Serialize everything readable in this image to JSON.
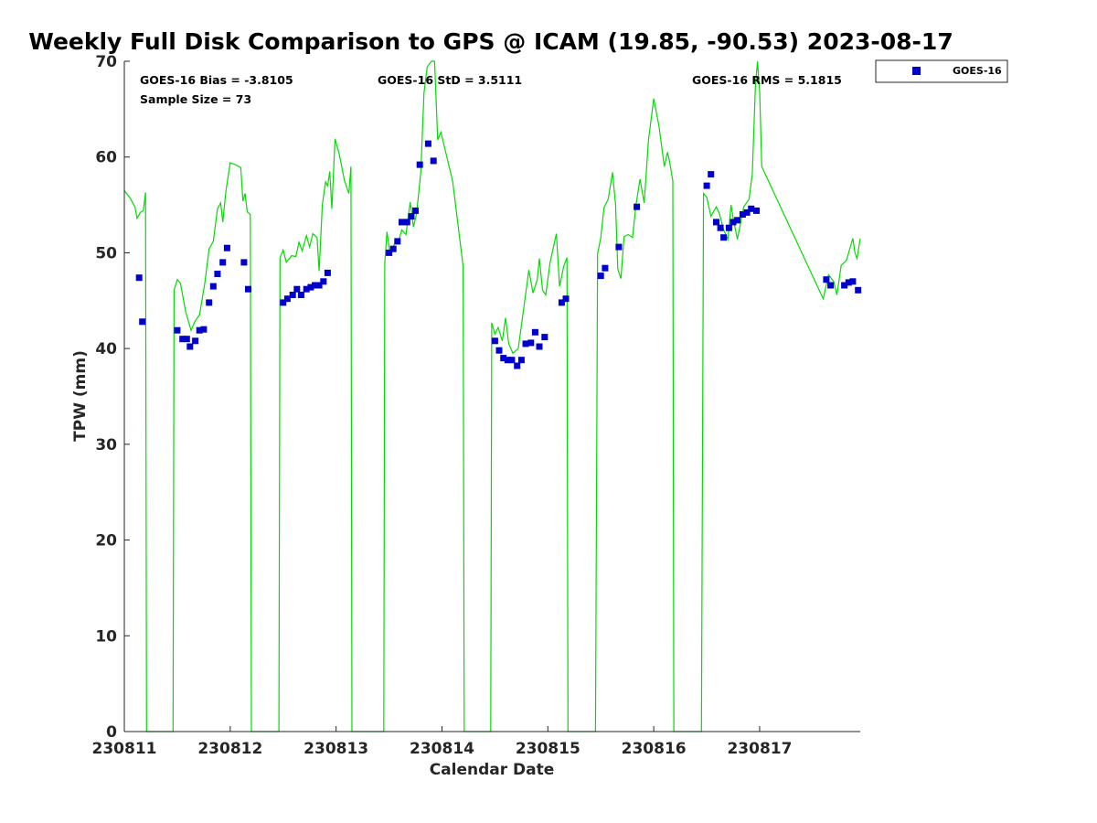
{
  "chart_data": {
    "type": "scatter",
    "title": "Weekly Full Disk Comparison to GPS @ ICAM (19.85, -90.53) 2023-08-17",
    "xlabel": "Calendar Date",
    "ylabel": "TPW (mm)",
    "xlim": [
      0,
      6.95
    ],
    "ylim": [
      0,
      70
    ],
    "x_ticks": [
      {
        "value": 0,
        "label": "230811"
      },
      {
        "value": 1,
        "label": "230812"
      },
      {
        "value": 2,
        "label": "230813"
      },
      {
        "value": 3,
        "label": "230814"
      },
      {
        "value": 4,
        "label": "230815"
      },
      {
        "value": 5,
        "label": "230816"
      },
      {
        "value": 6,
        "label": "230817"
      }
    ],
    "y_ticks": [
      0,
      10,
      20,
      30,
      40,
      50,
      60,
      70
    ],
    "grid": false,
    "legend": {
      "placement": "outside top-right",
      "entries": [
        "GOES-16"
      ]
    },
    "stats": {
      "bias": "GOES-16 Bias = -3.8105",
      "std": "GOES-16 StD = 3.5111",
      "rms": "GOES-16 RMS = 5.1815",
      "sample": "Sample Size = 73"
    },
    "colors": {
      "series": "#0000cc",
      "line": "#00dd00",
      "text": "#262626"
    },
    "series": [
      {
        "name": "GOES-16",
        "marker": "square",
        "points": [
          [
            0.14,
            47.4
          ],
          [
            0.17,
            42.8
          ],
          [
            0.5,
            41.9
          ],
          [
            0.55,
            41.0
          ],
          [
            0.59,
            41.0
          ],
          [
            0.62,
            40.2
          ],
          [
            0.67,
            40.8
          ],
          [
            0.71,
            41.9
          ],
          [
            0.75,
            42.0
          ],
          [
            0.8,
            44.8
          ],
          [
            0.84,
            46.5
          ],
          [
            0.88,
            47.8
          ],
          [
            0.93,
            49.0
          ],
          [
            0.97,
            50.5
          ],
          [
            1.13,
            49.0
          ],
          [
            1.17,
            46.2
          ],
          [
            1.5,
            44.8
          ],
          [
            1.54,
            45.2
          ],
          [
            1.59,
            45.6
          ],
          [
            1.63,
            46.2
          ],
          [
            1.67,
            45.6
          ],
          [
            1.72,
            46.2
          ],
          [
            1.76,
            46.4
          ],
          [
            1.8,
            46.6
          ],
          [
            1.84,
            46.6
          ],
          [
            1.88,
            47.0
          ],
          [
            1.92,
            47.9
          ],
          [
            2.5,
            50.0
          ],
          [
            2.54,
            50.4
          ],
          [
            2.58,
            51.2
          ],
          [
            2.62,
            53.2
          ],
          [
            2.67,
            53.2
          ],
          [
            2.71,
            53.8
          ],
          [
            2.75,
            54.4
          ],
          [
            2.79,
            59.2
          ],
          [
            2.87,
            61.4
          ],
          [
            2.92,
            59.6
          ],
          [
            3.5,
            40.8
          ],
          [
            3.54,
            39.8
          ],
          [
            3.58,
            39.0
          ],
          [
            3.62,
            38.8
          ],
          [
            3.66,
            38.8
          ],
          [
            3.71,
            38.2
          ],
          [
            3.75,
            38.8
          ],
          [
            3.79,
            40.5
          ],
          [
            3.84,
            40.6
          ],
          [
            3.88,
            41.7
          ],
          [
            3.92,
            40.2
          ],
          [
            3.97,
            41.2
          ],
          [
            4.13,
            44.8
          ],
          [
            4.17,
            45.2
          ],
          [
            4.5,
            47.6
          ],
          [
            4.54,
            48.4
          ],
          [
            4.67,
            50.6
          ],
          [
            4.84,
            54.8
          ],
          [
            5.5,
            57.0
          ],
          [
            5.54,
            58.2
          ],
          [
            5.59,
            53.2
          ],
          [
            5.63,
            52.6
          ],
          [
            5.66,
            51.6
          ],
          [
            5.71,
            52.6
          ],
          [
            5.75,
            53.2
          ],
          [
            5.79,
            53.4
          ],
          [
            5.84,
            54.0
          ],
          [
            5.88,
            54.2
          ],
          [
            5.92,
            54.6
          ],
          [
            5.97,
            54.4
          ],
          [
            6.63,
            47.2
          ],
          [
            6.67,
            46.6
          ],
          [
            6.8,
            46.6
          ],
          [
            6.84,
            46.9
          ],
          [
            6.88,
            47.0
          ],
          [
            6.93,
            46.1
          ]
        ]
      },
      {
        "name": "",
        "type": "line",
        "points": [
          [
            0,
            56.5
          ],
          [
            0.05,
            55.8
          ],
          [
            0.1,
            54.8
          ],
          [
            0.12,
            53.6
          ],
          [
            0.15,
            54.2
          ],
          [
            0.18,
            54.4
          ],
          [
            0.2,
            56.3
          ],
          [
            0.21,
            0
          ],
          [
            0.46,
            0
          ],
          [
            0.47,
            46.1
          ],
          [
            0.5,
            47.2
          ],
          [
            0.53,
            46.8
          ],
          [
            0.58,
            43.8
          ],
          [
            0.63,
            41.9
          ],
          [
            0.67,
            42.9
          ],
          [
            0.71,
            43.5
          ],
          [
            0.76,
            46.8
          ],
          [
            0.8,
            50.4
          ],
          [
            0.84,
            51.2
          ],
          [
            0.88,
            54.6
          ],
          [
            0.91,
            55.2
          ],
          [
            0.93,
            53.2
          ],
          [
            0.96,
            56.5
          ],
          [
            1.0,
            59.4
          ],
          [
            1.05,
            59.2
          ],
          [
            1.1,
            58.9
          ],
          [
            1.12,
            55.4
          ],
          [
            1.14,
            56.2
          ],
          [
            1.16,
            54.3
          ],
          [
            1.19,
            54.0
          ],
          [
            1.2,
            0
          ],
          [
            1.46,
            0
          ],
          [
            1.47,
            49.5
          ],
          [
            1.5,
            50.3
          ],
          [
            1.53,
            49.0
          ],
          [
            1.58,
            49.7
          ],
          [
            1.62,
            49.6
          ],
          [
            1.65,
            51.1
          ],
          [
            1.68,
            50.2
          ],
          [
            1.72,
            51.8
          ],
          [
            1.75,
            50.6
          ],
          [
            1.78,
            52.0
          ],
          [
            1.82,
            51.6
          ],
          [
            1.84,
            48.1
          ],
          [
            1.87,
            55.0
          ],
          [
            1.9,
            57.4
          ],
          [
            1.92,
            57.0
          ],
          [
            1.94,
            58.5
          ],
          [
            1.96,
            54.6
          ],
          [
            1.99,
            61.9
          ],
          [
            2.03,
            60.3
          ],
          [
            2.08,
            57.5
          ],
          [
            2.12,
            56.2
          ],
          [
            2.14,
            59.0
          ],
          [
            2.15,
            0
          ],
          [
            2.45,
            0
          ],
          [
            2.46,
            48.9
          ],
          [
            2.48,
            52.2
          ],
          [
            2.51,
            49.9
          ],
          [
            2.55,
            50.9
          ],
          [
            2.59,
            51.2
          ],
          [
            2.62,
            52.4
          ],
          [
            2.66,
            51.9
          ],
          [
            2.7,
            55.3
          ],
          [
            2.73,
            52.7
          ],
          [
            2.76,
            54.1
          ],
          [
            2.8,
            58.4
          ],
          [
            2.83,
            66.7
          ],
          [
            2.86,
            69.4
          ],
          [
            2.9,
            70.5
          ],
          [
            2.93,
            70.0
          ],
          [
            2.96,
            61.8
          ],
          [
            2.99,
            62.6
          ],
          [
            3.1,
            57.5
          ],
          [
            3.2,
            48.6
          ],
          [
            3.21,
            0
          ],
          [
            3.46,
            0
          ],
          [
            3.47,
            42.7
          ],
          [
            3.5,
            41.5
          ],
          [
            3.53,
            42.2
          ],
          [
            3.57,
            40.8
          ],
          [
            3.6,
            43.2
          ],
          [
            3.63,
            40.5
          ],
          [
            3.67,
            39.5
          ],
          [
            3.72,
            40.0
          ],
          [
            3.76,
            43.2
          ],
          [
            3.82,
            48.2
          ],
          [
            3.86,
            45.8
          ],
          [
            3.9,
            47.2
          ],
          [
            3.92,
            49.4
          ],
          [
            3.95,
            46.1
          ],
          [
            3.98,
            45.6
          ],
          [
            4.02,
            48.9
          ],
          [
            4.08,
            52.0
          ],
          [
            4.11,
            46.5
          ],
          [
            4.15,
            48.6
          ],
          [
            4.18,
            49.5
          ],
          [
            4.19,
            0
          ],
          [
            4.45,
            0
          ],
          [
            4.47,
            49.9
          ],
          [
            4.5,
            51.6
          ],
          [
            4.53,
            54.7
          ],
          [
            4.57,
            55.6
          ],
          [
            4.61,
            58.4
          ],
          [
            4.64,
            55.0
          ],
          [
            4.66,
            48.3
          ],
          [
            4.69,
            47.3
          ],
          [
            4.72,
            51.7
          ],
          [
            4.76,
            51.9
          ],
          [
            4.8,
            51.6
          ],
          [
            4.83,
            54.8
          ],
          [
            4.87,
            57.7
          ],
          [
            4.91,
            55.2
          ],
          [
            4.95,
            61.7
          ],
          [
            5.0,
            66.1
          ],
          [
            5.05,
            63.2
          ],
          [
            5.1,
            59.0
          ],
          [
            5.13,
            60.5
          ],
          [
            5.15,
            59.5
          ],
          [
            5.18,
            57.5
          ],
          [
            5.19,
            0
          ],
          [
            5.45,
            0
          ],
          [
            5.47,
            56.2
          ],
          [
            5.5,
            55.8
          ],
          [
            5.54,
            53.8
          ],
          [
            5.59,
            54.8
          ],
          [
            5.62,
            54.1
          ],
          [
            5.66,
            52.4
          ],
          [
            5.7,
            51.4
          ],
          [
            5.73,
            55.0
          ],
          [
            5.75,
            53.6
          ],
          [
            5.79,
            51.4
          ],
          [
            5.85,
            54.8
          ],
          [
            5.9,
            55.6
          ],
          [
            5.93,
            58.2
          ],
          [
            5.96,
            67.3
          ],
          [
            5.98,
            70.5
          ],
          [
            6.0,
            66.8
          ],
          [
            6.02,
            59.0
          ],
          [
            6.6,
            45.2
          ],
          [
            6.65,
            47.7
          ],
          [
            6.7,
            47.0
          ],
          [
            6.73,
            45.6
          ],
          [
            6.77,
            48.7
          ],
          [
            6.82,
            49.2
          ],
          [
            6.88,
            51.5
          ],
          [
            6.9,
            50.0
          ],
          [
            6.92,
            49.4
          ],
          [
            6.95,
            51.5
          ]
        ]
      }
    ]
  }
}
